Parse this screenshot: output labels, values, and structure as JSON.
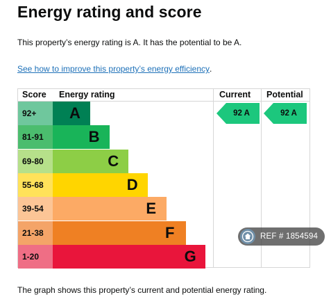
{
  "page": {
    "title": "Energy rating and score",
    "summary": "This property’s energy rating is A. It has the potential to be A.",
    "improve_link": "See how to improve this property’s energy efficiency",
    "improve_link_suffix": ".",
    "footer": "The graph shows this property’s current and potential energy rating."
  },
  "chart": {
    "headers": {
      "score": "Score",
      "energy_rating": "Energy rating",
      "current": "Current",
      "potential": "Potential"
    },
    "bands": [
      {
        "score": "92+",
        "letter": "A",
        "color": "#008054",
        "score_bg": "#6fc79d"
      },
      {
        "score": "81-91",
        "letter": "B",
        "color": "#19b459",
        "score_bg": "#4bbd6e"
      },
      {
        "score": "69-80",
        "letter": "C",
        "color": "#8dce46",
        "score_bg": "#b6e08a"
      },
      {
        "score": "55-68",
        "letter": "D",
        "color": "#ffd500",
        "score_bg": "#ffe25a"
      },
      {
        "score": "39-54",
        "letter": "E",
        "color": "#fcaa65",
        "score_bg": "#fcc596"
      },
      {
        "score": "21-38",
        "letter": "F",
        "color": "#ef8023",
        "score_bg": "#f4a468"
      },
      {
        "score": "1-20",
        "letter": "G",
        "color": "#e9153b",
        "score_bg": "#ef6e85"
      }
    ],
    "current": {
      "label": "92 A",
      "band_index": 0,
      "color": "#1cc77d"
    },
    "potential": {
      "label": "92 A",
      "band_index": 0,
      "color": "#1cc77d"
    }
  },
  "watermark": {
    "text": "REF # 1854594",
    "icon": "house-icon"
  }
}
